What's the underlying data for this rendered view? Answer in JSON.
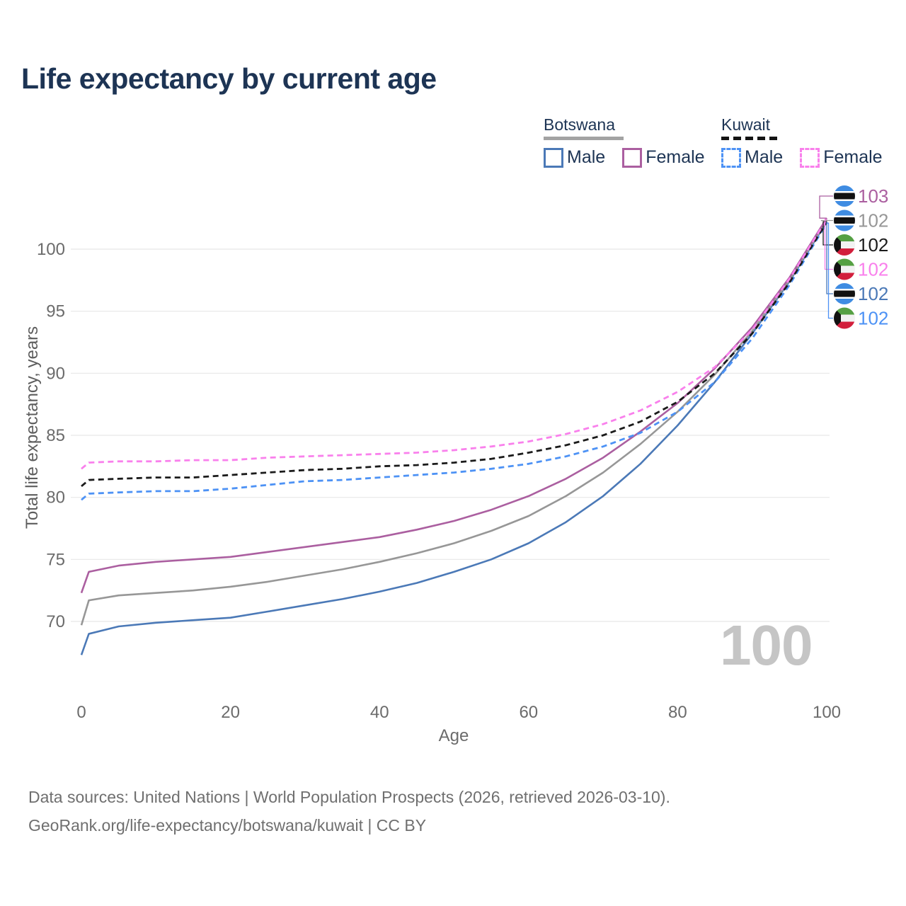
{
  "title": "Life expectancy by current age",
  "legend": {
    "groups": [
      {
        "label": "Botswana",
        "line_style": "solid",
        "underline_color": "#a3a3a3",
        "items": [
          {
            "label": "Male",
            "color": "#4b79b7",
            "dashed": false
          },
          {
            "label": "Female",
            "color": "#ab5fa0",
            "dashed": false
          }
        ]
      },
      {
        "label": "Kuwait",
        "line_style": "dashed",
        "underline_color": "#141414",
        "items": [
          {
            "label": "Male",
            "color": "#4d92f5",
            "dashed": true
          },
          {
            "label": "Female",
            "color": "#f980ec",
            "dashed": true
          }
        ]
      }
    ]
  },
  "end_labels": [
    {
      "series": "Botswana Female",
      "flag": "botswana",
      "value": "103",
      "color": "#ab5fa0"
    },
    {
      "series": "Botswana",
      "flag": "botswana",
      "value": "102",
      "color": "#979797"
    },
    {
      "series": "Kuwait",
      "flag": "kuwait",
      "value": "102",
      "color": "#1b1b1b"
    },
    {
      "series": "Kuwait Female",
      "flag": "kuwait",
      "value": "102",
      "color": "#f980ec"
    },
    {
      "series": "Botswana Male",
      "flag": "botswana",
      "value": "102",
      "color": "#4b79b7"
    },
    {
      "series": "Kuwait Male",
      "flag": "kuwait",
      "value": "102",
      "color": "#4d92f5"
    }
  ],
  "watermark": "100",
  "axes": {
    "x_label": "Age",
    "y_label": "Total life expectancy, years",
    "x_ticks": [
      0,
      20,
      40,
      60,
      80,
      100
    ],
    "y_ticks": [
      70,
      75,
      80,
      85,
      90,
      95,
      100
    ]
  },
  "footer": {
    "line1": "Data sources: United Nations | World Population Prospects (2026, retrieved 2026-03-10).",
    "line2": "GeoRank.org/life-expectancy/botswana/kuwait | CC BY"
  },
  "chart_data": {
    "type": "line",
    "title": "Life expectancy by current age",
    "xlabel": "Age",
    "ylabel": "Total life expectancy, years",
    "xlim": [
      0,
      100
    ],
    "ylim": [
      65,
      103.5
    ],
    "grid": "horizontal",
    "legend_position": "top-right",
    "x": [
      0,
      1,
      5,
      10,
      15,
      20,
      25,
      30,
      35,
      40,
      45,
      50,
      55,
      60,
      65,
      70,
      75,
      80,
      85,
      90,
      95,
      100
    ],
    "series": [
      {
        "name": "Botswana Male",
        "country": "Botswana",
        "sex": "Male",
        "color": "#4b79b7",
        "dashed": false,
        "values": [
          67.3,
          69.0,
          69.6,
          69.9,
          70.1,
          70.3,
          70.8,
          71.3,
          71.8,
          72.4,
          73.1,
          74.0,
          75.0,
          76.3,
          78.0,
          80.1,
          82.7,
          85.8,
          89.3,
          93.2,
          97.4,
          102.2
        ]
      },
      {
        "name": "Botswana",
        "country": "Botswana",
        "sex": "Both",
        "color": "#979797",
        "dashed": false,
        "values": [
          69.7,
          71.7,
          72.1,
          72.3,
          72.5,
          72.8,
          73.2,
          73.7,
          74.2,
          74.8,
          75.5,
          76.3,
          77.3,
          78.5,
          80.1,
          82.0,
          84.3,
          86.9,
          89.9,
          93.4,
          97.5,
          102.3
        ]
      },
      {
        "name": "Botswana Female",
        "country": "Botswana",
        "sex": "Female",
        "color": "#ab5fa0",
        "dashed": false,
        "values": [
          72.3,
          74.0,
          74.5,
          74.8,
          75.0,
          75.2,
          75.6,
          76.0,
          76.4,
          76.8,
          77.4,
          78.1,
          79.0,
          80.1,
          81.5,
          83.2,
          85.3,
          87.6,
          90.4,
          93.7,
          97.7,
          102.5
        ]
      },
      {
        "name": "Kuwait Male",
        "country": "Kuwait",
        "sex": "Male",
        "color": "#4d92f5",
        "dashed": true,
        "values": [
          79.8,
          80.3,
          80.4,
          80.5,
          80.5,
          80.7,
          81.0,
          81.3,
          81.4,
          81.6,
          81.8,
          82.0,
          82.3,
          82.7,
          83.3,
          84.1,
          85.2,
          86.9,
          89.3,
          92.8,
          97.1,
          102.1
        ]
      },
      {
        "name": "Kuwait",
        "country": "Kuwait",
        "sex": "Both",
        "color": "#1b1b1b",
        "dashed": true,
        "values": [
          80.9,
          81.4,
          81.5,
          81.6,
          81.6,
          81.8,
          82.0,
          82.2,
          82.3,
          82.5,
          82.6,
          82.8,
          83.1,
          83.6,
          84.2,
          85.0,
          86.1,
          87.7,
          90.0,
          93.2,
          97.3,
          102.2
        ]
      },
      {
        "name": "Kuwait Female",
        "country": "Kuwait",
        "sex": "Female",
        "color": "#f980ec",
        "dashed": true,
        "values": [
          82.3,
          82.8,
          82.9,
          82.9,
          83.0,
          83.0,
          83.2,
          83.3,
          83.4,
          83.5,
          83.6,
          83.8,
          84.1,
          84.5,
          85.1,
          85.9,
          87.0,
          88.5,
          90.5,
          93.5,
          97.6,
          102.4
        ]
      }
    ]
  }
}
